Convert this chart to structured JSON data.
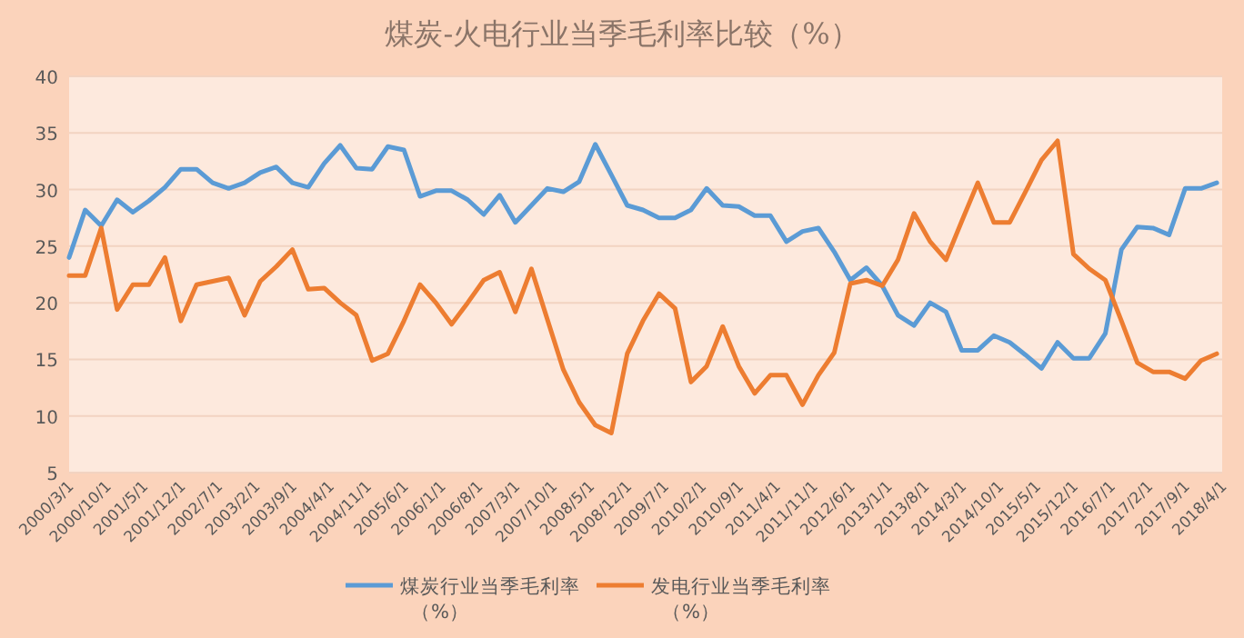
{
  "chart_data": {
    "type": "line",
    "title": "煤炭-火电行业当季毛利率比较（%）",
    "x": [
      "2000-03",
      "2000-06",
      "2000-09",
      "2000-12",
      "2001-03",
      "2001-06",
      "2001-09",
      "2001-12",
      "2002-03",
      "2002-06",
      "2002-09",
      "2002-12",
      "2003-03",
      "2003-06",
      "2003-09",
      "2003-12",
      "2004-03",
      "2004-06",
      "2004-09",
      "2004-12",
      "2005-03",
      "2005-06",
      "2005-09",
      "2005-12",
      "2006-03",
      "2006-06",
      "2006-09",
      "2006-12",
      "2007-03",
      "2007-06",
      "2007-09",
      "2007-12",
      "2008-03",
      "2008-06",
      "2008-09",
      "2008-12",
      "2009-03",
      "2009-06",
      "2009-09",
      "2009-12",
      "2010-03",
      "2010-06",
      "2010-09",
      "2010-12",
      "2011-03",
      "2011-06",
      "2011-09",
      "2011-12",
      "2012-03",
      "2012-06",
      "2012-09",
      "2012-12",
      "2013-03",
      "2013-06",
      "2013-09",
      "2013-12",
      "2014-03",
      "2014-06",
      "2014-09",
      "2014-12",
      "2015-03",
      "2015-06",
      "2015-09",
      "2015-12",
      "2016-03",
      "2016-06",
      "2016-09",
      "2016-12",
      "2017-03",
      "2017-06",
      "2017-09",
      "2017-12",
      "2018-03"
    ],
    "series": [
      {
        "name": "煤炭行业当季毛利率（%）",
        "color": "#5b9bd5",
        "values": [
          24.0,
          28.2,
          26.8,
          29.1,
          28.0,
          29.0,
          30.2,
          31.8,
          31.8,
          30.6,
          30.1,
          30.6,
          31.5,
          32.0,
          30.6,
          30.2,
          32.3,
          33.9,
          31.9,
          31.8,
          33.8,
          33.5,
          29.4,
          29.9,
          29.9,
          29.1,
          27.8,
          29.5,
          27.1,
          28.6,
          30.1,
          29.8,
          30.7,
          34.0,
          31.3,
          28.6,
          28.2,
          27.5,
          27.5,
          28.2,
          30.1,
          28.6,
          28.5,
          27.7,
          27.7,
          25.4,
          26.3,
          26.6,
          24.5,
          22.0,
          23.1,
          21.5,
          18.9,
          18.0,
          20.0,
          19.2,
          15.8,
          15.8,
          17.1,
          16.5,
          15.4,
          14.2,
          16.5,
          15.1,
          15.1,
          17.3,
          24.7,
          26.7,
          26.6,
          26.0,
          30.1,
          30.1,
          30.6
        ]
      },
      {
        "name": "发电行业当季毛利率（%）",
        "color": "#ed7d31",
        "values": [
          22.4,
          22.4,
          26.6,
          19.4,
          21.6,
          21.6,
          24.0,
          18.4,
          21.6,
          21.9,
          22.2,
          18.9,
          21.9,
          23.2,
          24.7,
          21.2,
          21.3,
          20.0,
          18.9,
          14.9,
          15.5,
          18.4,
          21.6,
          20.0,
          18.1,
          20.0,
          22.0,
          22.7,
          19.2,
          23.0,
          18.5,
          14.1,
          11.2,
          9.2,
          8.5,
          15.5,
          18.4,
          20.8,
          19.5,
          13.0,
          14.4,
          17.9,
          14.4,
          12.0,
          13.6,
          13.6,
          11.0,
          13.6,
          15.6,
          21.7,
          22.0,
          21.5,
          23.8,
          27.9,
          25.4,
          23.8,
          27.2,
          30.6,
          27.1,
          27.1,
          29.8,
          32.6,
          34.3,
          24.3,
          23.0,
          22.0,
          18.4,
          14.7,
          13.9,
          13.9,
          13.3,
          14.9,
          15.5
        ]
      }
    ],
    "xlim": [
      "2000-03-01",
      "2018-04-01"
    ],
    "xticks": [
      {
        "value": "2000-03-01",
        "label": "2000/3/1"
      },
      {
        "value": "2000-10-01",
        "label": "2000/10/1"
      },
      {
        "value": "2001-05-01",
        "label": "2001/5/1"
      },
      {
        "value": "2001-12-01",
        "label": "2001/12/1"
      },
      {
        "value": "2002-07-01",
        "label": "2002/7/1"
      },
      {
        "value": "2003-02-01",
        "label": "2003/2/1"
      },
      {
        "value": "2003-09-01",
        "label": "2003/9/1"
      },
      {
        "value": "2004-04-01",
        "label": "2004/4/1"
      },
      {
        "value": "2004-11-01",
        "label": "2004/11/1"
      },
      {
        "value": "2005-06-01",
        "label": "2005/6/1"
      },
      {
        "value": "2006-01-01",
        "label": "2006/1/1"
      },
      {
        "value": "2006-08-01",
        "label": "2006/8/1"
      },
      {
        "value": "2007-03-01",
        "label": "2007/3/1"
      },
      {
        "value": "2007-10-01",
        "label": "2007/10/1"
      },
      {
        "value": "2008-05-01",
        "label": "2008/5/1"
      },
      {
        "value": "2008-12-01",
        "label": "2008/12/1"
      },
      {
        "value": "2009-07-01",
        "label": "2009/7/1"
      },
      {
        "value": "2010-02-01",
        "label": "2010/2/1"
      },
      {
        "value": "2010-09-01",
        "label": "2010/9/1"
      },
      {
        "value": "2011-04-01",
        "label": "2011/4/1"
      },
      {
        "value": "2011-11-01",
        "label": "2011/11/1"
      },
      {
        "value": "2012-06-01",
        "label": "2012/6/1"
      },
      {
        "value": "2013-01-01",
        "label": "2013/1/1"
      },
      {
        "value": "2013-08-01",
        "label": "2013/8/1"
      },
      {
        "value": "2014-03-01",
        "label": "2014/3/1"
      },
      {
        "value": "2014-10-01",
        "label": "2014/10/1"
      },
      {
        "value": "2015-05-01",
        "label": "2015/5/1"
      },
      {
        "value": "2015-12-01",
        "label": "2015/12/1"
      },
      {
        "value": "2016-07-01",
        "label": "2016/7/1"
      },
      {
        "value": "2017-02-01",
        "label": "2017/2/1"
      },
      {
        "value": "2017-09-01",
        "label": "2017/9/1"
      },
      {
        "value": "2018-04-01",
        "label": "2018/4/1"
      }
    ],
    "ylim": [
      5,
      40
    ],
    "yticks": [
      5,
      10,
      15,
      20,
      25,
      30,
      35,
      40
    ],
    "grid": "y",
    "legend": "bottom",
    "marker": "none",
    "line_style": "solid"
  }
}
